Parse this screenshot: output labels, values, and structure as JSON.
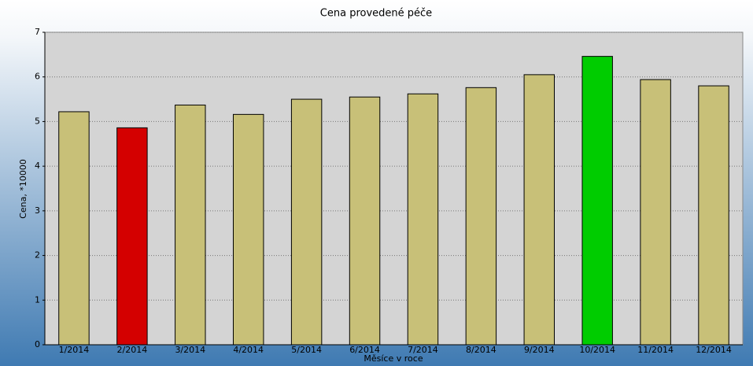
{
  "chart_data": {
    "type": "bar",
    "title": "Cena provedené péče",
    "x_label": "Měsíce v roce",
    "y_label": "Cena, *10000",
    "categories": [
      "1/2014",
      "2/2014",
      "3/2014",
      "4/2014",
      "5/2014",
      "6/2014",
      "7/2014",
      "8/2014",
      "9/2014",
      "10/2014",
      "11/2014",
      "12/2014"
    ],
    "values": [
      5.22,
      4.86,
      5.37,
      5.16,
      5.5,
      5.55,
      5.62,
      5.76,
      6.05,
      6.46,
      5.94,
      5.8
    ],
    "colors": [
      "#c8c078",
      "#d40000",
      "#c8c078",
      "#c8c078",
      "#c8c078",
      "#c8c078",
      "#c8c078",
      "#c8c078",
      "#c8c078",
      "#00cc00",
      "#c8c078",
      "#c8c078"
    ],
    "ylim": [
      0,
      7
    ],
    "yticks": [
      0,
      1,
      2,
      3,
      4,
      5,
      6,
      7
    ],
    "grid": true
  }
}
